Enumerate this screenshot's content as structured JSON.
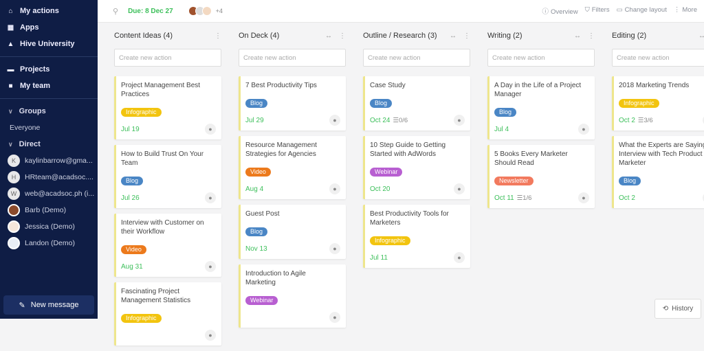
{
  "sidebar": {
    "nav": [
      {
        "label": "My actions",
        "icon": "home-icon"
      },
      {
        "label": "Apps",
        "icon": "grid-icon"
      },
      {
        "label": "Hive University",
        "icon": "graduation-cap-icon"
      }
    ],
    "nav2": [
      {
        "label": "Projects",
        "icon": "folder-icon"
      },
      {
        "label": "My team",
        "icon": "square-icon"
      }
    ],
    "groups_label": "Groups",
    "everyone": "Everyone",
    "direct_label": "Direct",
    "direct": [
      {
        "initial": "K",
        "name": "kaylinbarrow@gma..."
      },
      {
        "initial": "H",
        "name": "HRteam@acadsoc...."
      },
      {
        "initial": "W",
        "name": "web@acadsoc.ph (i..."
      },
      {
        "initial": "",
        "name": "Barb (Demo)"
      },
      {
        "initial": "",
        "name": "Jessica (Demo)"
      },
      {
        "initial": "",
        "name": "Landon (Demo)"
      }
    ],
    "new_message": "New message"
  },
  "topbar": {
    "due": "Due: 8 Dec 27",
    "more_members": "+4",
    "overview": "Overview",
    "filters": "Filters",
    "change_layout": "Change layout",
    "more": "More"
  },
  "create_placeholder": "Create new action",
  "tag_colors": {
    "Infographic": "#f2c40f",
    "Blog": "#4a86c5",
    "Video": "#ec7a1c",
    "Webinar": "#b85fd1",
    "Newsletter": "#f27a5e"
  },
  "columns": [
    {
      "title": "Content Ideas (4)",
      "cards": [
        {
          "title": [
            "Project Management Best",
            "Practices"
          ],
          "tag": "Infographic",
          "date": "Jul 19"
        },
        {
          "title": [
            "How to Build Trust On Your",
            "Team"
          ],
          "tag": "Blog",
          "date": "Jul 26"
        },
        {
          "title": [
            "Interview with Customer on",
            "their Workflow"
          ],
          "tag": "Video",
          "date": "Aug 31"
        },
        {
          "title": [
            "Fascinating Project",
            "Management Statistics"
          ],
          "tag": "Infographic",
          "date": ""
        }
      ]
    },
    {
      "title": "On Deck (4)",
      "cards": [
        {
          "title": [
            "7 Best Productivity Tips"
          ],
          "tag": "Blog",
          "date": "Jul 29"
        },
        {
          "title": [
            "Resource Management",
            "Strategies for Agencies"
          ],
          "tag": "Video",
          "date": "Aug 4"
        },
        {
          "title": [
            "Guest Post"
          ],
          "tag": "Blog",
          "date": "Nov 13"
        },
        {
          "title": [
            "Introduction to Agile",
            "Marketing"
          ],
          "tag": "Webinar",
          "date": ""
        }
      ]
    },
    {
      "title": "Outline / Research (3)",
      "cards": [
        {
          "title": [
            "Case Study"
          ],
          "tag": "Blog",
          "date": "Oct 24",
          "checklist": "0/6"
        },
        {
          "title": [
            "10 Step Guide to Getting",
            "Started with AdWords"
          ],
          "tag": "Webinar",
          "date": "Oct 20"
        },
        {
          "title": [
            "Best Productivity Tools for",
            "Marketers"
          ],
          "tag": "Infographic",
          "date": "Jul 11"
        }
      ]
    },
    {
      "title": "Writing (2)",
      "cards": [
        {
          "title": [
            "A Day in the Life of a Project",
            "Manager"
          ],
          "tag": "Blog",
          "date": "Jul 4"
        },
        {
          "title": [
            "5 Books Every Marketer",
            "Should Read"
          ],
          "tag": "Newsletter",
          "date": "Oct 11",
          "checklist": "1/6"
        }
      ]
    },
    {
      "title": "Editing (2)",
      "cards": [
        {
          "title": [
            "2018 Marketing Trends"
          ],
          "tag": "Infographic",
          "date": "Oct 2",
          "checklist": "3/6"
        },
        {
          "title": [
            "What the Experts are Saying",
            "Interview with Tech Product",
            "Marketer"
          ],
          "tag": "Blog",
          "date": "Oct 2"
        }
      ]
    }
  ],
  "history": "History"
}
